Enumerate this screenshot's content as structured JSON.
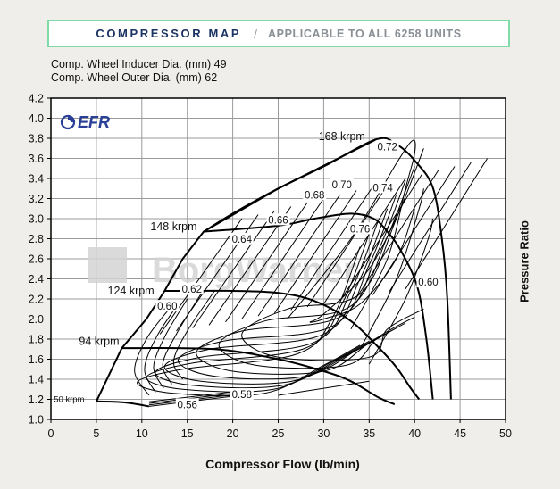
{
  "header": {
    "title": "COMPRESSOR MAP",
    "separator": "/",
    "subtitle": "APPLICABLE TO ALL 6258  UNITS"
  },
  "specs": {
    "inducer": "Comp. Wheel Inducer Dia. (mm) 49",
    "outer": "Comp. Wheel Outer Dia. (mm) 62"
  },
  "logo": {
    "text": "EFR",
    "color": "#2a3f96"
  },
  "watermark": "BorgWarner",
  "colors": {
    "header_border": "#7fdca6",
    "header_title": "#1c3463",
    "logo": "#2a3f96",
    "background": "#efeeea"
  },
  "chart_data": {
    "type": "line",
    "title": "COMPRESSOR MAP / APPLICABLE TO ALL 6258 UNITS",
    "xlabel": "Compressor Flow (lb/min)",
    "ylabel": "Pressure Ratio",
    "xlim": [
      0,
      50
    ],
    "ylim": [
      1.0,
      4.2
    ],
    "x_ticks": [
      "0",
      "5",
      "10",
      "15",
      "20",
      "25",
      "30",
      "35",
      "40",
      "45",
      "50"
    ],
    "y_ticks": [
      "1.0",
      "1.2",
      "1.4",
      "1.6",
      "1.8",
      "2.0",
      "2.2",
      "2.4",
      "2.6",
      "2.8",
      "3.0",
      "3.2",
      "3.4",
      "3.6",
      "3.8",
      "4.0",
      "4.2"
    ],
    "grid": true,
    "speed_lines": [
      {
        "name": "50 krpm",
        "points": [
          [
            5.0,
            1.18
          ],
          [
            8.0,
            1.17
          ],
          [
            10.8,
            1.13
          ]
        ]
      },
      {
        "name": "94 krpm",
        "points": [
          [
            7.8,
            1.71
          ],
          [
            18,
            1.7
          ],
          [
            25,
            1.6
          ],
          [
            30,
            1.48
          ],
          [
            33,
            1.38
          ],
          [
            36,
            1.22
          ],
          [
            37.8,
            1.15
          ]
        ]
      },
      {
        "name": "124 krpm",
        "points": [
          [
            12.5,
            2.28
          ],
          [
            20,
            2.28
          ],
          [
            25,
            2.26
          ],
          [
            29,
            2.18
          ],
          [
            33,
            1.98
          ],
          [
            36,
            1.72
          ],
          [
            38,
            1.52
          ],
          [
            39.5,
            1.32
          ],
          [
            40.5,
            1.2
          ]
        ]
      },
      {
        "name": "148 krpm",
        "points": [
          [
            16.8,
            2.87
          ],
          [
            25,
            2.93
          ],
          [
            29,
            3.0
          ],
          [
            33,
            3.05
          ],
          [
            35.5,
            3.0
          ],
          [
            37,
            2.87
          ],
          [
            38.5,
            2.68
          ],
          [
            40.3,
            2.32
          ],
          [
            41.3,
            1.8
          ],
          [
            42,
            1.2
          ]
        ]
      },
      {
        "name": "168 krpm",
        "points": [
          [
            16.8,
            2.87
          ],
          [
            20,
            3.05
          ],
          [
            25,
            3.3
          ],
          [
            30,
            3.52
          ],
          [
            35.8,
            3.79
          ],
          [
            38,
            3.74
          ],
          [
            40,
            3.58
          ],
          [
            42,
            3.31
          ],
          [
            43,
            2.8
          ],
          [
            43.6,
            2.2
          ],
          [
            44,
            1.2
          ]
        ]
      }
    ],
    "surge_line": [
      [
        5.0,
        1.18
      ],
      [
        7.8,
        1.71
      ],
      [
        10.5,
        2.0
      ],
      [
        12.5,
        2.28
      ],
      [
        14.5,
        2.6
      ],
      [
        16.8,
        2.87
      ],
      [
        25,
        3.3
      ],
      [
        35.8,
        3.79
      ]
    ],
    "efficiency_labels": [
      {
        "label": "0.56",
        "x": 15.0,
        "y": 1.13
      },
      {
        "label": "0.58",
        "x": 21.0,
        "y": 1.23
      },
      {
        "label": "0.60",
        "x": 12.8,
        "y": 2.11
      },
      {
        "label": "0.62",
        "x": 15.5,
        "y": 2.28
      },
      {
        "label": "0.64",
        "x": 21.0,
        "y": 2.78
      },
      {
        "label": "0.66",
        "x": 25.0,
        "y": 2.97
      },
      {
        "label": "0.68",
        "x": 29.0,
        "y": 3.22
      },
      {
        "label": "0.70",
        "x": 32.0,
        "y": 3.32
      },
      {
        "label": "0.72",
        "x": 37.0,
        "y": 3.7
      },
      {
        "label": "0.74",
        "x": 36.5,
        "y": 3.29
      },
      {
        "label": "0.76",
        "x": 34.0,
        "y": 2.88
      },
      {
        "label": "0.60",
        "x": 41.5,
        "y": 2.35
      }
    ],
    "speed_labels": [
      {
        "label": "50 krpm",
        "x": 2.0,
        "y": 1.21
      },
      {
        "label": "94 krpm",
        "x": 5.3,
        "y": 1.78
      },
      {
        "label": "124 krpm",
        "x": 8.8,
        "y": 2.28
      },
      {
        "label": "148 krpm",
        "x": 13.5,
        "y": 2.92
      },
      {
        "label": "168 krpm",
        "x": 32.0,
        "y": 3.82
      }
    ]
  }
}
